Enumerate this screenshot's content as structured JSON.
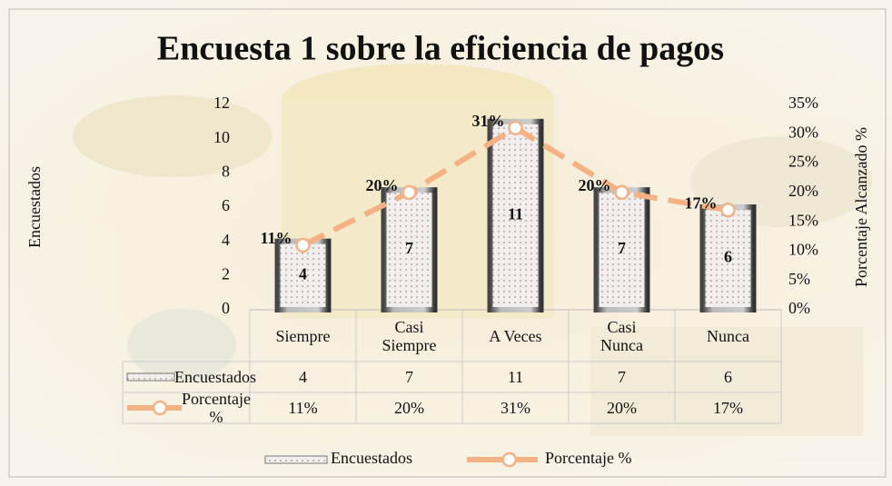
{
  "chart_data": {
    "type": "bar",
    "title": "Encuesta 1 sobre la eficiencia de pagos",
    "y_label": "Encuestados",
    "y2_label": "Porcentaje Alcanzado %",
    "categories": [
      "Siempre",
      "Casi Siempre",
      "A Veces",
      "Casi Nunca",
      "Nunca"
    ],
    "series": [
      {
        "name": "Encuestados",
        "type": "bar",
        "color": "#f2eeee",
        "values": [
          4,
          7,
          11,
          7,
          6
        ]
      },
      {
        "name": "Porcentaje %",
        "type": "line",
        "axis": "y2",
        "color": "#f4b183",
        "values": [
          11,
          20,
          31,
          20,
          17
        ],
        "value_labels": [
          "11%",
          "20%",
          "31%",
          "20%",
          "17%"
        ]
      }
    ],
    "ylim": [
      0,
      12
    ],
    "yticks": [
      0,
      2,
      4,
      6,
      8,
      10,
      12
    ],
    "y2lim": [
      0,
      35
    ],
    "y2ticks": [
      {
        "value": 0,
        "label": "0%"
      },
      {
        "value": 5,
        "label": "5%"
      },
      {
        "value": 10,
        "label": "10%"
      },
      {
        "value": 15,
        "label": "15%"
      },
      {
        "value": 20,
        "label": "20%"
      },
      {
        "value": 25,
        "label": "25%"
      },
      {
        "value": 30,
        "label": "30%"
      },
      {
        "value": 35,
        "label": "35%"
      }
    ],
    "legend": "bottom",
    "data_table": true
  }
}
